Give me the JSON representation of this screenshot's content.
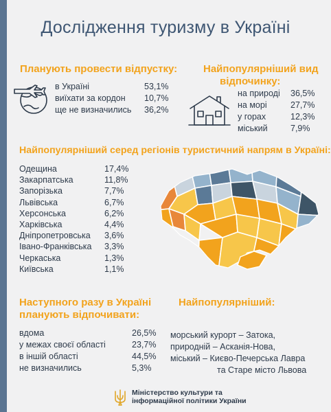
{
  "title": "Дослідження туризму в Україні",
  "vacation_plan": {
    "heading": "Планують провести відпустку:",
    "icon": "globe-plane-icon",
    "items": [
      {
        "label": "в Україні",
        "value": "53,1%"
      },
      {
        "label": "виїхати за кордон",
        "value": "10,7%"
      },
      {
        "label": "ще не визначились",
        "value": "36,2%"
      }
    ]
  },
  "rest_type": {
    "heading_line1": "Найпопулярніший вид",
    "heading_line2": "відпочинку:",
    "icon": "house-icon",
    "items": [
      {
        "label": "на природі",
        "value": "36,5%"
      },
      {
        "label": "на морі",
        "value": "27,7%"
      },
      {
        "label": "у горах",
        "value": "12,3%"
      },
      {
        "label": "міський",
        "value": "7,9%"
      }
    ]
  },
  "regions": {
    "heading": "Найпопулярніший серед регіонів туристичний напрям в Україні:",
    "items": [
      {
        "label": "Одещина",
        "value": "17,4%"
      },
      {
        "label": "Закарпатська",
        "value": "11,8%"
      },
      {
        "label": "Запорізька",
        "value": "7,7%"
      },
      {
        "label": "Львівська",
        "value": "6,7%"
      },
      {
        "label": "Херсонська",
        "value": "6,2%"
      },
      {
        "label": "Харківська",
        "value": "4,4%"
      },
      {
        "label": "Дніпропетровська",
        "value": "3,6%"
      },
      {
        "label": "Івано-Франківська",
        "value": "3,3%"
      },
      {
        "label": "Черкаська",
        "value": "1,3%"
      },
      {
        "label": "Київська",
        "value": "1,1%"
      }
    ]
  },
  "next_time": {
    "heading_line1": "Наступного разу в Україні",
    "heading_line2": "планують відпочивати:",
    "items": [
      {
        "label": "вдома",
        "value": "26,5%"
      },
      {
        "label": "у межах своєї області",
        "value": "23,7%"
      },
      {
        "label": "в іншій області",
        "value": "44,5%"
      },
      {
        "label": "не визначились",
        "value": "5,3%"
      }
    ]
  },
  "most_popular": {
    "heading": "Найпопулярніший:",
    "lines": [
      "морський курорт – Затока,",
      "природній – Асканія-Нова,",
      "міський – Києво-Печерська Лавра",
      "та Старе місто Львова"
    ]
  },
  "footer": {
    "line1": "Міністерство культури та",
    "line2": "інформаційної політики України",
    "icon": "trident-icon"
  },
  "colors": {
    "title": "#3e5673",
    "accent": "#f2a31d",
    "sidebar": "#5b7592",
    "map_palette": [
      "#f2a31d",
      "#f7c64a",
      "#e8873a",
      "#94b3cc",
      "#5b7a97",
      "#3e5567",
      "#c9d4de"
    ]
  },
  "chart_data": [
    {
      "type": "table",
      "title": "Планують провести відпустку:",
      "categories": [
        "в Україні",
        "виїхати за кордон",
        "ще не визначились"
      ],
      "values": [
        53.1,
        10.7,
        36.2
      ]
    },
    {
      "type": "table",
      "title": "Найпопулярніший вид відпочинку:",
      "categories": [
        "на природі",
        "на морі",
        "у горах",
        "міський"
      ],
      "values": [
        36.5,
        27.7,
        12.3,
        7.9
      ]
    },
    {
      "type": "table",
      "title": "Найпопулярніший серед регіонів туристичний напрям в Україні:",
      "categories": [
        "Одещина",
        "Закарпатська",
        "Запорізька",
        "Львівська",
        "Херсонська",
        "Харківська",
        "Дніпропетровська",
        "Івано-Франківська",
        "Черкаська",
        "Київська"
      ],
      "values": [
        17.4,
        11.8,
        7.7,
        6.7,
        6.2,
        4.4,
        3.6,
        3.3,
        1.3,
        1.1
      ]
    },
    {
      "type": "table",
      "title": "Наступного разу в Україні планують відпочивати:",
      "categories": [
        "вдома",
        "у межах своєї області",
        "в іншій області",
        "не визначились"
      ],
      "values": [
        26.5,
        23.7,
        44.5,
        5.3
      ]
    }
  ]
}
